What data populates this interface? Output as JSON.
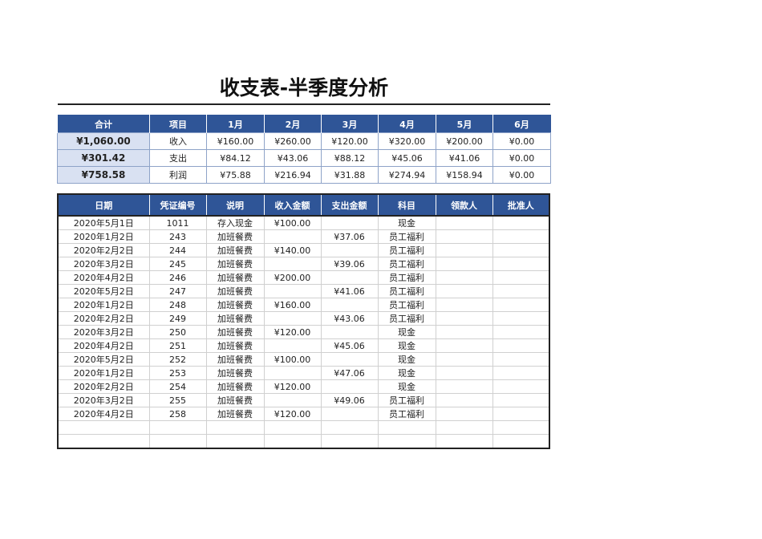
{
  "title": "收支表-半季度分析",
  "colors": {
    "header": "#2F5597",
    "total_cell": "#D9E1F2"
  },
  "summary": {
    "headers": [
      "合计",
      "项目",
      "1月",
      "2月",
      "3月",
      "4月",
      "5月",
      "6月"
    ],
    "rows": [
      [
        "¥1,060.00",
        "收入",
        "¥160.00",
        "¥260.00",
        "¥120.00",
        "¥320.00",
        "¥200.00",
        "¥0.00"
      ],
      [
        "¥301.42",
        "支出",
        "¥84.12",
        "¥43.06",
        "¥88.12",
        "¥45.06",
        "¥41.06",
        "¥0.00"
      ],
      [
        "¥758.58",
        "利润",
        "¥75.88",
        "¥216.94",
        "¥31.88",
        "¥274.94",
        "¥158.94",
        "¥0.00"
      ]
    ]
  },
  "detail": {
    "headers": [
      "日期",
      "凭证编号",
      "说明",
      "收入金额",
      "支出金额",
      "科目",
      "领款人",
      "批准人"
    ],
    "rows": [
      [
        "2020年5月1日",
        "1011",
        "存入现金",
        "¥100.00",
        "",
        "现金",
        "",
        ""
      ],
      [
        "2020年1月2日",
        "243",
        "加班餐费",
        "",
        "¥37.06",
        "员工福利",
        "",
        ""
      ],
      [
        "2020年2月2日",
        "244",
        "加班餐费",
        "¥140.00",
        "",
        "员工福利",
        "",
        ""
      ],
      [
        "2020年3月2日",
        "245",
        "加班餐费",
        "",
        "¥39.06",
        "员工福利",
        "",
        ""
      ],
      [
        "2020年4月2日",
        "246",
        "加班餐费",
        "¥200.00",
        "",
        "员工福利",
        "",
        ""
      ],
      [
        "2020年5月2日",
        "247",
        "加班餐费",
        "",
        "¥41.06",
        "员工福利",
        "",
        ""
      ],
      [
        "2020年1月2日",
        "248",
        "加班餐费",
        "¥160.00",
        "",
        "员工福利",
        "",
        ""
      ],
      [
        "2020年2月2日",
        "249",
        "加班餐费",
        "",
        "¥43.06",
        "员工福利",
        "",
        ""
      ],
      [
        "2020年3月2日",
        "250",
        "加班餐费",
        "¥120.00",
        "",
        "现金",
        "",
        ""
      ],
      [
        "2020年4月2日",
        "251",
        "加班餐费",
        "",
        "¥45.06",
        "现金",
        "",
        ""
      ],
      [
        "2020年5月2日",
        "252",
        "加班餐费",
        "¥100.00",
        "",
        "现金",
        "",
        ""
      ],
      [
        "2020年1月2日",
        "253",
        "加班餐费",
        "",
        "¥47.06",
        "现金",
        "",
        ""
      ],
      [
        "2020年2月2日",
        "254",
        "加班餐费",
        "¥120.00",
        "",
        "现金",
        "",
        ""
      ],
      [
        "2020年3月2日",
        "255",
        "加班餐费",
        "",
        "¥49.06",
        "员工福利",
        "",
        ""
      ],
      [
        "2020年4月2日",
        "258",
        "加班餐费",
        "¥120.00",
        "",
        "员工福利",
        "",
        ""
      ],
      [
        "",
        "",
        "",
        "",
        "",
        "",
        "",
        ""
      ],
      [
        "",
        "",
        "",
        "",
        "",
        "",
        "",
        ""
      ]
    ]
  }
}
